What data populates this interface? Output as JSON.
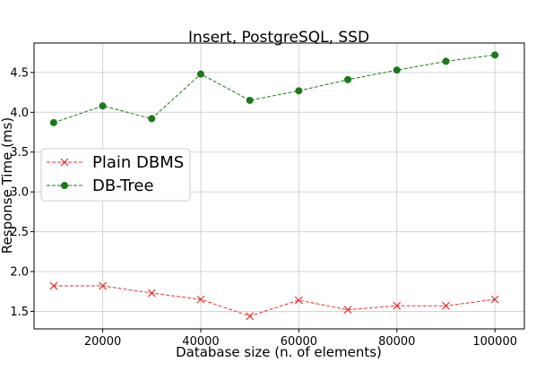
{
  "chart_data": {
    "type": "line",
    "title": "Insert, PostgreSQL, SSD",
    "xlabel": "Database size (n. of elements)",
    "ylabel": "Response Time (ms)",
    "x": [
      10000,
      20000,
      30000,
      40000,
      50000,
      60000,
      70000,
      80000,
      90000,
      100000
    ],
    "xlim": [
      6000,
      106000
    ],
    "ylim": [
      1.28,
      4.87
    ],
    "xticks": [
      20000,
      40000,
      60000,
      80000,
      100000
    ],
    "yticks": [
      1.5,
      2.0,
      2.5,
      3.0,
      3.5,
      4.0,
      4.5
    ],
    "xtick_labels": [
      "20000",
      "40000",
      "60000",
      "80000",
      "100000"
    ],
    "ytick_labels": [
      "1.5",
      "2.0",
      "2.5",
      "3.0",
      "3.5",
      "4.0",
      "4.5"
    ],
    "grid": true,
    "legend_position": "center-left",
    "series": [
      {
        "name": "Plain DBMS",
        "color": "#e8322d",
        "marker": "x",
        "linestyle": "dashed",
        "values": [
          1.82,
          1.82,
          1.73,
          1.65,
          1.44,
          1.64,
          1.52,
          1.57,
          1.57,
          1.65
        ]
      },
      {
        "name": "DB-Tree",
        "color": "#1a7a1a",
        "marker": "circle",
        "linestyle": "dashed",
        "values": [
          3.87,
          4.08,
          3.92,
          4.48,
          4.15,
          4.27,
          4.41,
          4.53,
          4.64,
          4.72
        ]
      }
    ]
  }
}
